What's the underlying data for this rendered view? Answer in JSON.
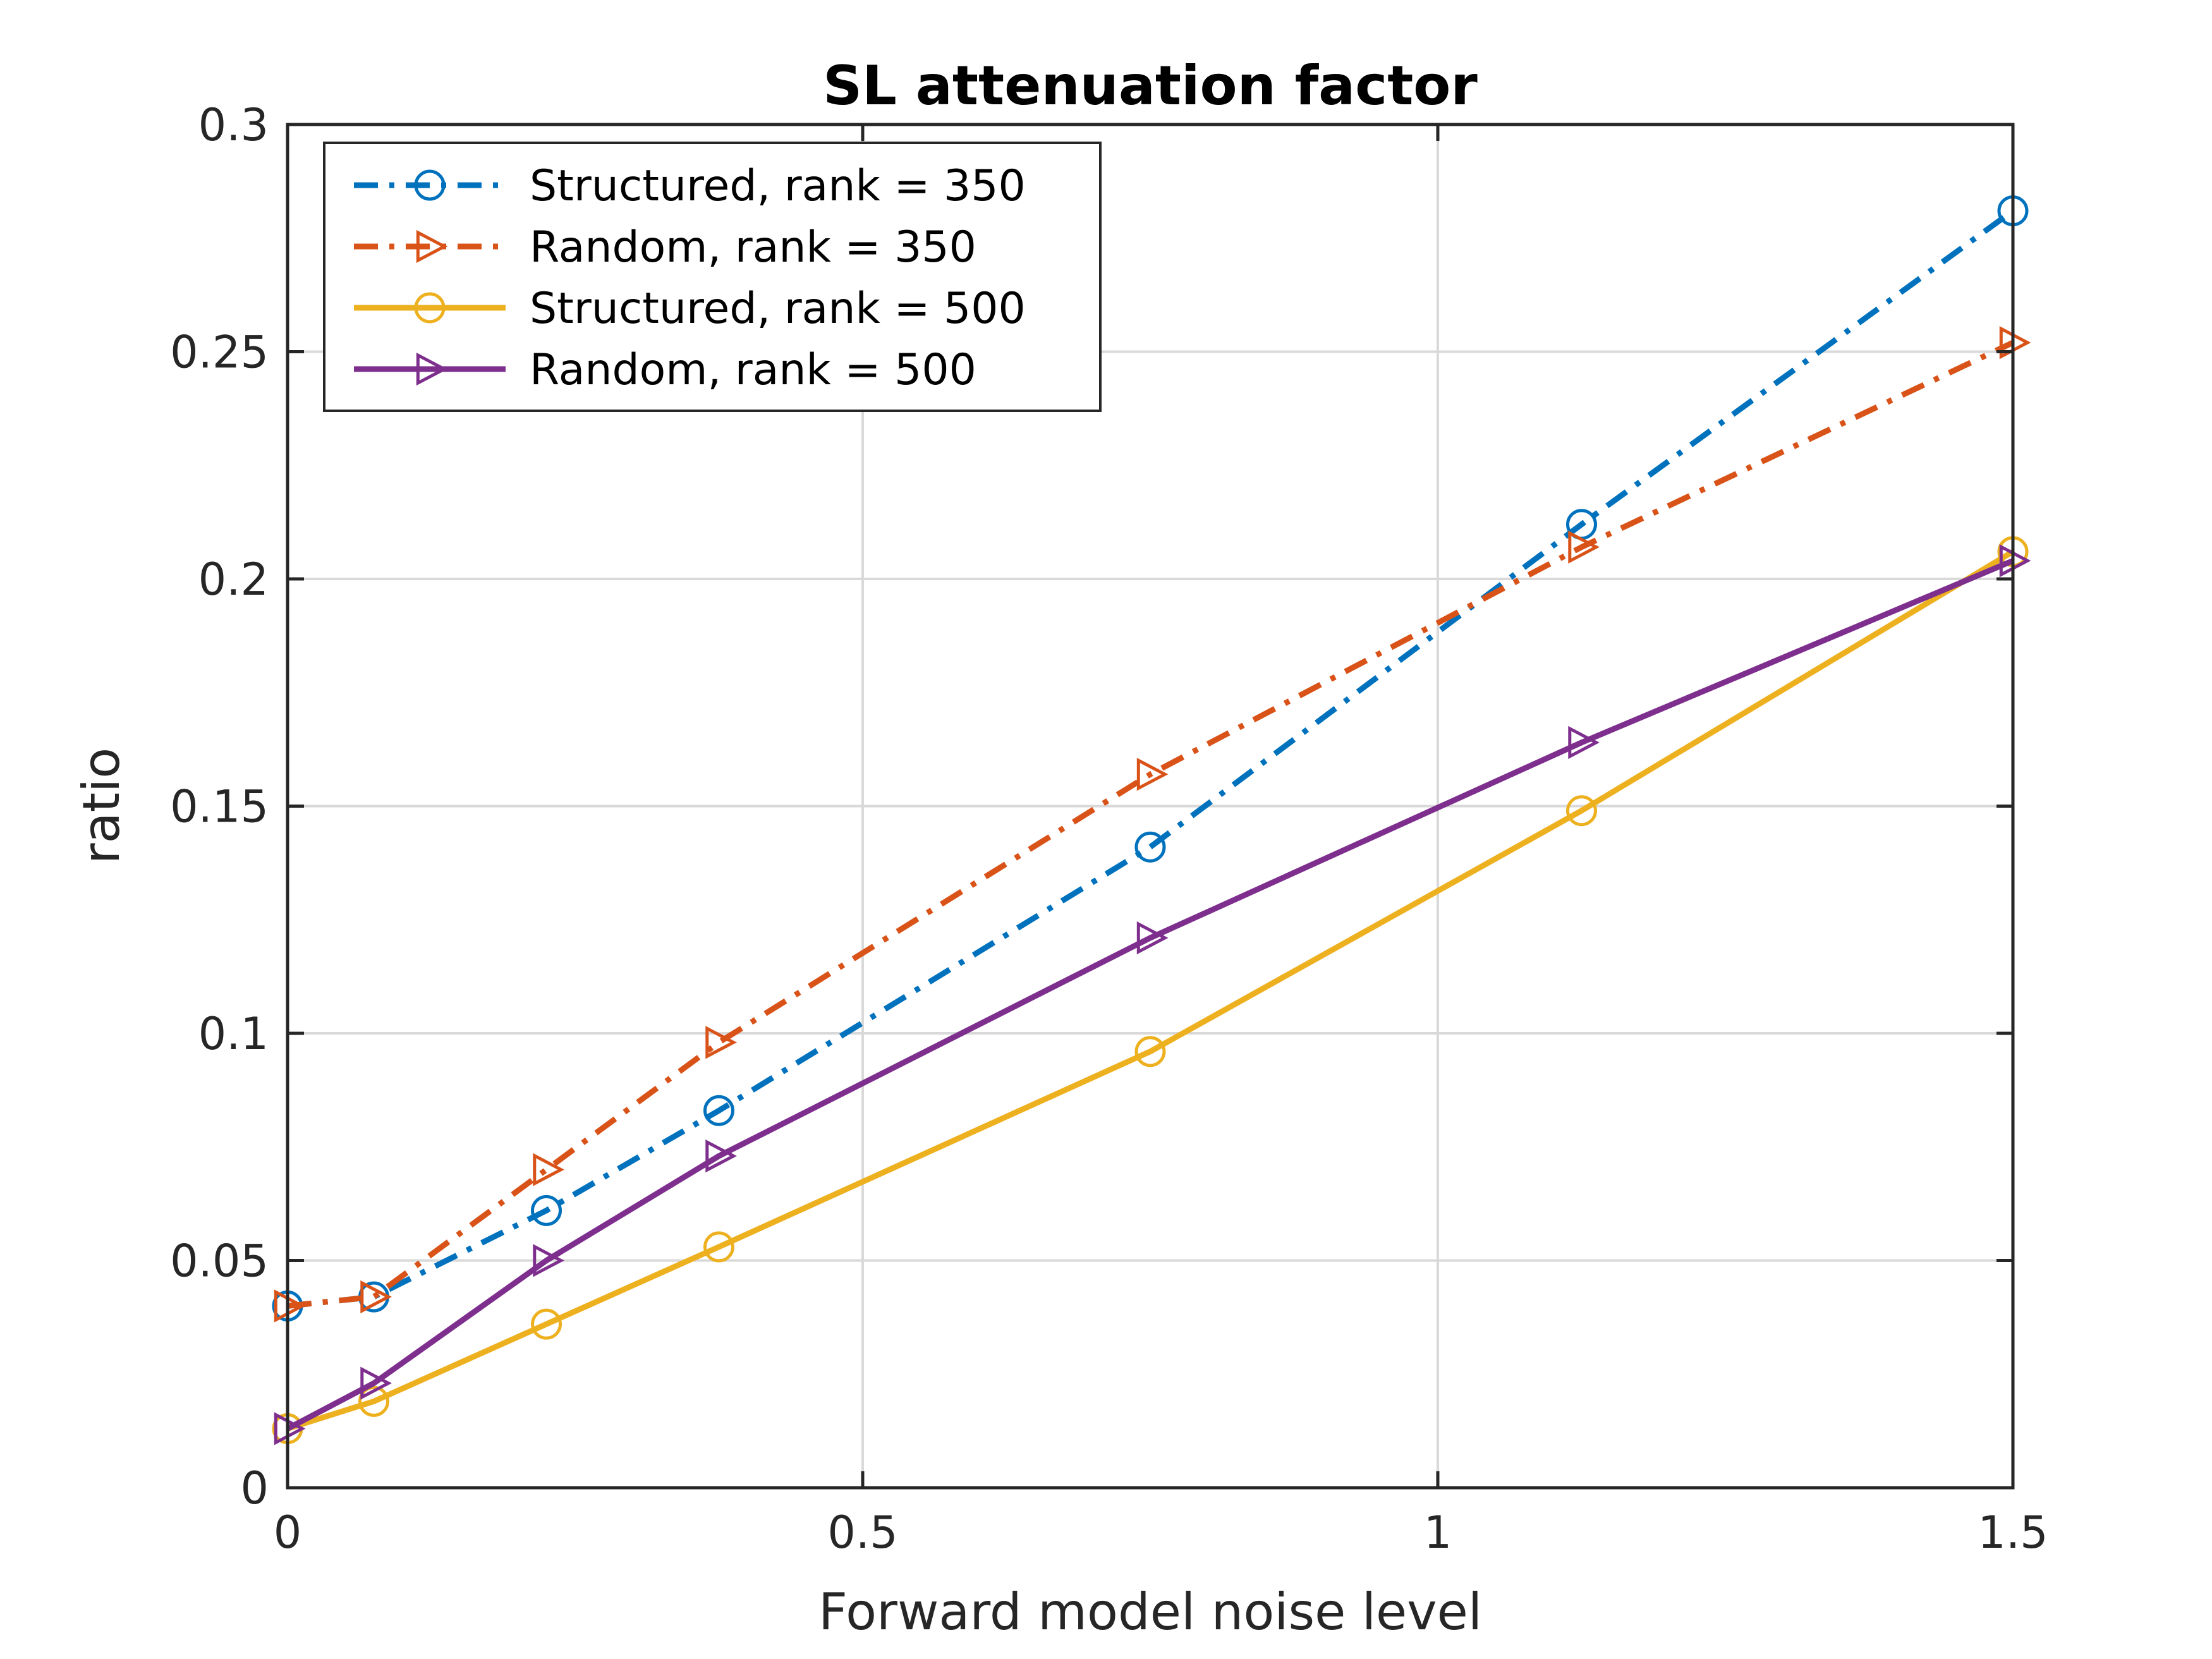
{
  "chart_data": {
    "type": "line",
    "title": "SL attenuation factor",
    "xlabel": "Forward model noise level",
    "ylabel": "ratio",
    "xlim": [
      0,
      1.5
    ],
    "ylim": [
      0,
      0.3
    ],
    "xticks": [
      0,
      0.5,
      1,
      1.5
    ],
    "xtick_labels": [
      "0",
      "0.5",
      "1",
      "1.5"
    ],
    "yticks": [
      0,
      0.05,
      0.1,
      0.15,
      0.2,
      0.25,
      0.3
    ],
    "ytick_labels": [
      "0",
      "0.05",
      "0.1",
      "0.15",
      "0.2",
      "0.25",
      "0.3"
    ],
    "grid": true,
    "legend_position": "top-left",
    "x": [
      0,
      0.075,
      0.225,
      0.375,
      0.75,
      1.125,
      1.5
    ],
    "series": [
      {
        "name": "Structured, rank = 350",
        "values": [
          0.04,
          0.042,
          0.061,
          0.083,
          0.141,
          0.212,
          0.281
        ],
        "color": "#0072BD",
        "linestyle": "dashdot",
        "marker": "circle"
      },
      {
        "name": "Random, rank = 350",
        "values": [
          0.04,
          0.042,
          0.07,
          0.098,
          0.157,
          0.207,
          0.252
        ],
        "color": "#D95319",
        "linestyle": "dashdot",
        "marker": "triangle-right"
      },
      {
        "name": "Structured, rank = 500",
        "values": [
          0.013,
          0.019,
          0.036,
          0.053,
          0.096,
          0.149,
          0.206
        ],
        "color": "#EDB120",
        "linestyle": "solid",
        "marker": "circle"
      },
      {
        "name": "Random, rank = 500",
        "values": [
          0.013,
          0.023,
          0.05,
          0.073,
          0.121,
          0.164,
          0.204
        ],
        "color": "#7E2F8E",
        "linestyle": "solid",
        "marker": "triangle-right"
      }
    ]
  }
}
